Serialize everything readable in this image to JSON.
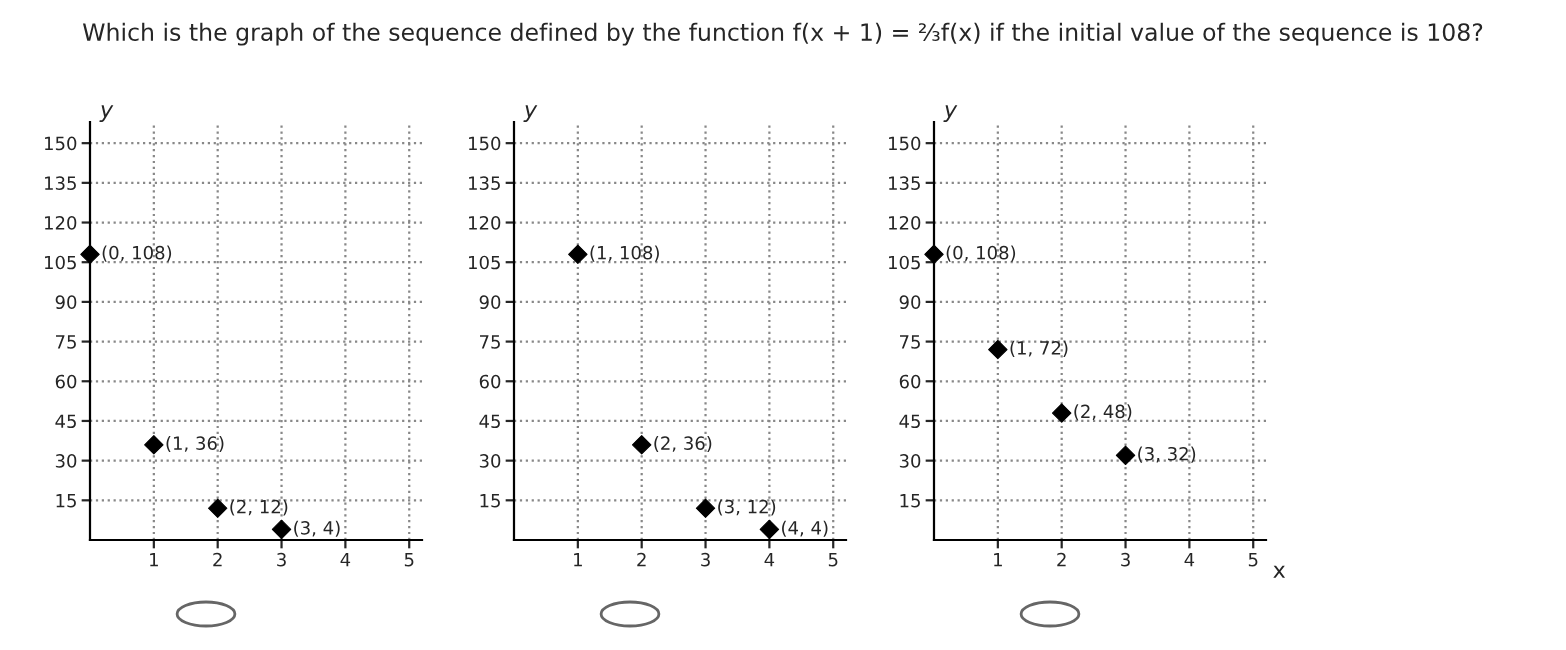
{
  "chart_data": [
    {
      "type": "scatter",
      "title": "Which is the graph of the sequence defined by the function f(x + 1) = ⅔f(x) if the initial value of the sequence is 108?",
      "ylabel": "y",
      "x": [
        0,
        1,
        2,
        3
      ],
      "values": [
        108,
        36,
        12,
        4
      ],
      "color": "#000000",
      "marker": "diamond",
      "xlim": [
        0,
        5.2
      ],
      "ylim": [
        0,
        158
      ],
      "xticks": [
        1,
        2,
        3,
        4,
        5
      ],
      "yticks": [
        15,
        30,
        45,
        60,
        75,
        90,
        105,
        120,
        135,
        150
      ],
      "grid": true,
      "annotations": [
        {
          "text": "(0, 108)",
          "x": 0,
          "y": 108
        },
        {
          "text": "(1, 36)",
          "x": 1,
          "y": 36
        },
        {
          "text": "(2, 12)",
          "x": 2,
          "y": 12
        },
        {
          "text": "(3, 4)",
          "x": 3,
          "y": 4
        }
      ]
    },
    {
      "type": "scatter",
      "ylabel": "y",
      "x": [
        1,
        2,
        3,
        4
      ],
      "values": [
        108,
        36,
        12,
        4
      ],
      "color": "#000000",
      "marker": "diamond",
      "xlim": [
        0,
        5.2
      ],
      "ylim": [
        0,
        158
      ],
      "xticks": [
        1,
        2,
        3,
        4,
        5
      ],
      "yticks": [
        15,
        30,
        45,
        60,
        75,
        90,
        105,
        120,
        135,
        150
      ],
      "grid": true,
      "annotations": [
        {
          "text": "(1, 108)",
          "x": 1,
          "y": 108
        },
        {
          "text": "(2, 36)",
          "x": 2,
          "y": 36
        },
        {
          "text": "(3, 12)",
          "x": 3,
          "y": 12
        },
        {
          "text": "(4, 4)",
          "x": 4,
          "y": 4
        }
      ]
    },
    {
      "type": "scatter",
      "ylabel": "y",
      "xlabel": "x",
      "x": [
        0,
        1,
        2,
        3
      ],
      "values": [
        108,
        72,
        48,
        32
      ],
      "color": "#000000",
      "marker": "diamond",
      "xlim": [
        0,
        5.2
      ],
      "ylim": [
        0,
        158
      ],
      "xticks": [
        1,
        2,
        3,
        4,
        5
      ],
      "yticks": [
        15,
        30,
        45,
        60,
        75,
        90,
        105,
        120,
        135,
        150
      ],
      "grid": true,
      "annotations": [
        {
          "text": "(0, 108)",
          "x": 0,
          "y": 108
        },
        {
          "text": "(1, 72)",
          "x": 1,
          "y": 72
        },
        {
          "text": "(2, 48)",
          "x": 2,
          "y": 48
        },
        {
          "text": "(3, 32)",
          "x": 3,
          "y": 32
        }
      ]
    }
  ]
}
